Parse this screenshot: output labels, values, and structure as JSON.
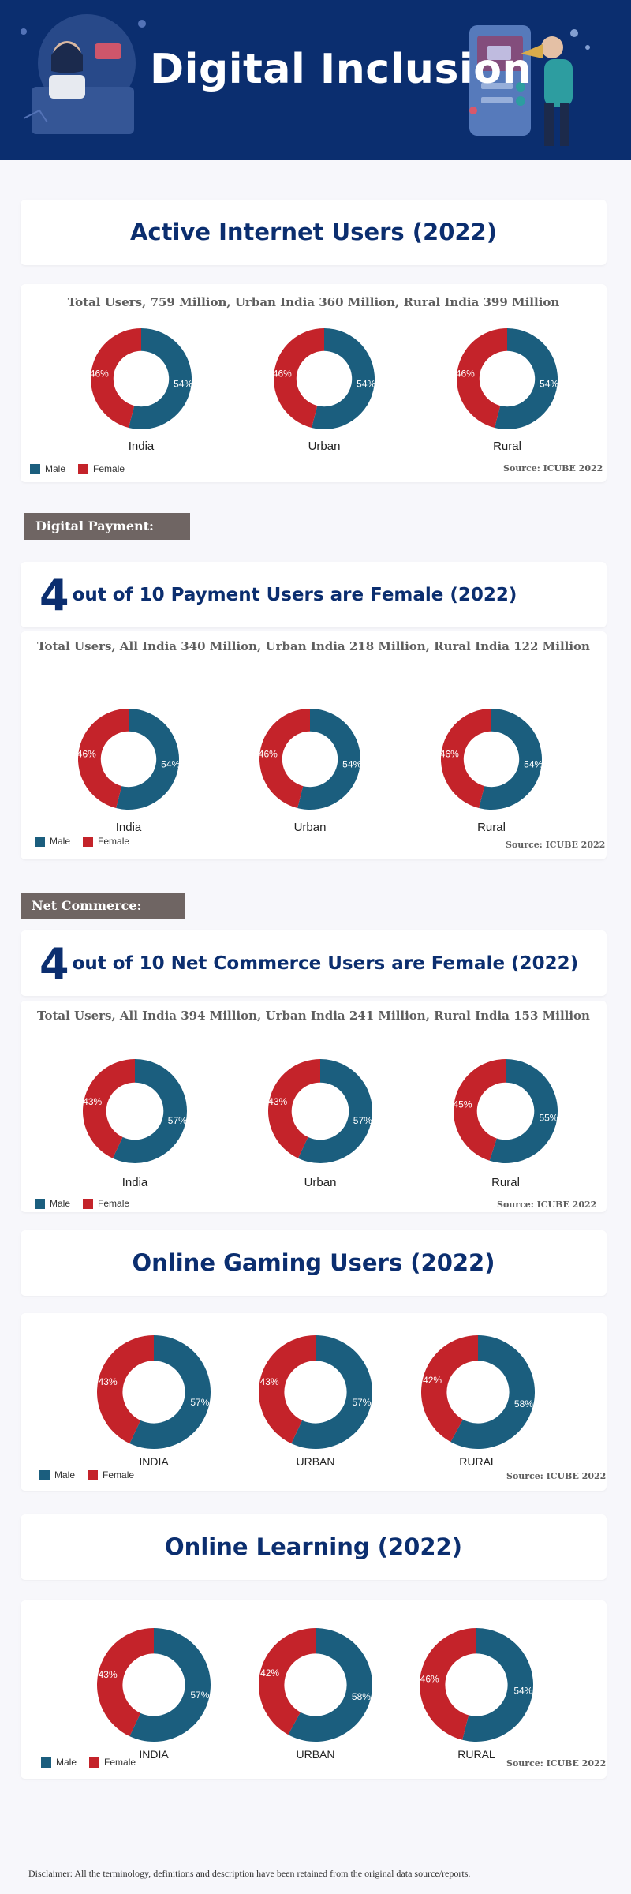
{
  "header": {
    "title": "Digital Inclusion"
  },
  "colors": {
    "male": "#1b5e7e",
    "female": "#c4232a",
    "title": "#0b2e6f",
    "header_bg": "#0b2e6f",
    "label_bg": "#6f6563"
  },
  "legend": {
    "male": "Male",
    "female": "Female"
  },
  "source": "Source: ICUBE 2022",
  "sections": {
    "internet": {
      "title": "Active Internet Users (2022)",
      "subtitle": "Total Users, 759 Million, Urban India 360 Million,  Rural India 399 Million"
    },
    "payment": {
      "label": "Digital Payment:",
      "title_num": "4",
      "title_rest": "out of 10 Payment Users are Female (2022)",
      "subtitle": "Total Users, All India 340 Million, Urban India 218 Million, Rural India 122 Million"
    },
    "commerce": {
      "label": "Net Commerce:",
      "title_num": "4",
      "title_rest": "out of 10 Net Commerce Users are Female (2022)",
      "subtitle": "Total Users, All India 394 Million, Urban India 241 Million, Rural India 153 Million"
    },
    "gaming": {
      "title": "Online Gaming Users (2022)"
    },
    "learning": {
      "title": "Online Learning (2022)"
    }
  },
  "disclaimer": "Disclaimer: All the terminology, definitions and description have been retained from the original data source/reports.",
  "chart_data": [
    {
      "type": "pie",
      "chart": "internet",
      "categories": [
        "India",
        "Urban",
        "Rural"
      ],
      "series": [
        {
          "name": "Male",
          "values": [
            54,
            54,
            54
          ]
        },
        {
          "name": "Female",
          "values": [
            46,
            46,
            46
          ]
        }
      ]
    },
    {
      "type": "pie",
      "chart": "payment",
      "categories": [
        "India",
        "Urban",
        "Rural"
      ],
      "series": [
        {
          "name": "Male",
          "values": [
            54,
            54,
            54
          ]
        },
        {
          "name": "Female",
          "values": [
            46,
            46,
            46
          ]
        }
      ]
    },
    {
      "type": "pie",
      "chart": "commerce",
      "categories": [
        "India",
        "Urban",
        "Rural"
      ],
      "series": [
        {
          "name": "Male",
          "values": [
            57,
            57,
            55
          ]
        },
        {
          "name": "Female",
          "values": [
            43,
            43,
            45
          ]
        }
      ]
    },
    {
      "type": "pie",
      "chart": "gaming",
      "categories": [
        "INDIA",
        "URBAN",
        "RURAL"
      ],
      "series": [
        {
          "name": "Male",
          "values": [
            57,
            57,
            58
          ]
        },
        {
          "name": "Female",
          "values": [
            43,
            43,
            42
          ]
        }
      ]
    },
    {
      "type": "pie",
      "chart": "learning",
      "categories": [
        "INDIA",
        "URBAN",
        "RURAL"
      ],
      "series": [
        {
          "name": "Male",
          "values": [
            57,
            58,
            54
          ]
        },
        {
          "name": "Female",
          "values": [
            43,
            42,
            46
          ]
        }
      ]
    }
  ]
}
